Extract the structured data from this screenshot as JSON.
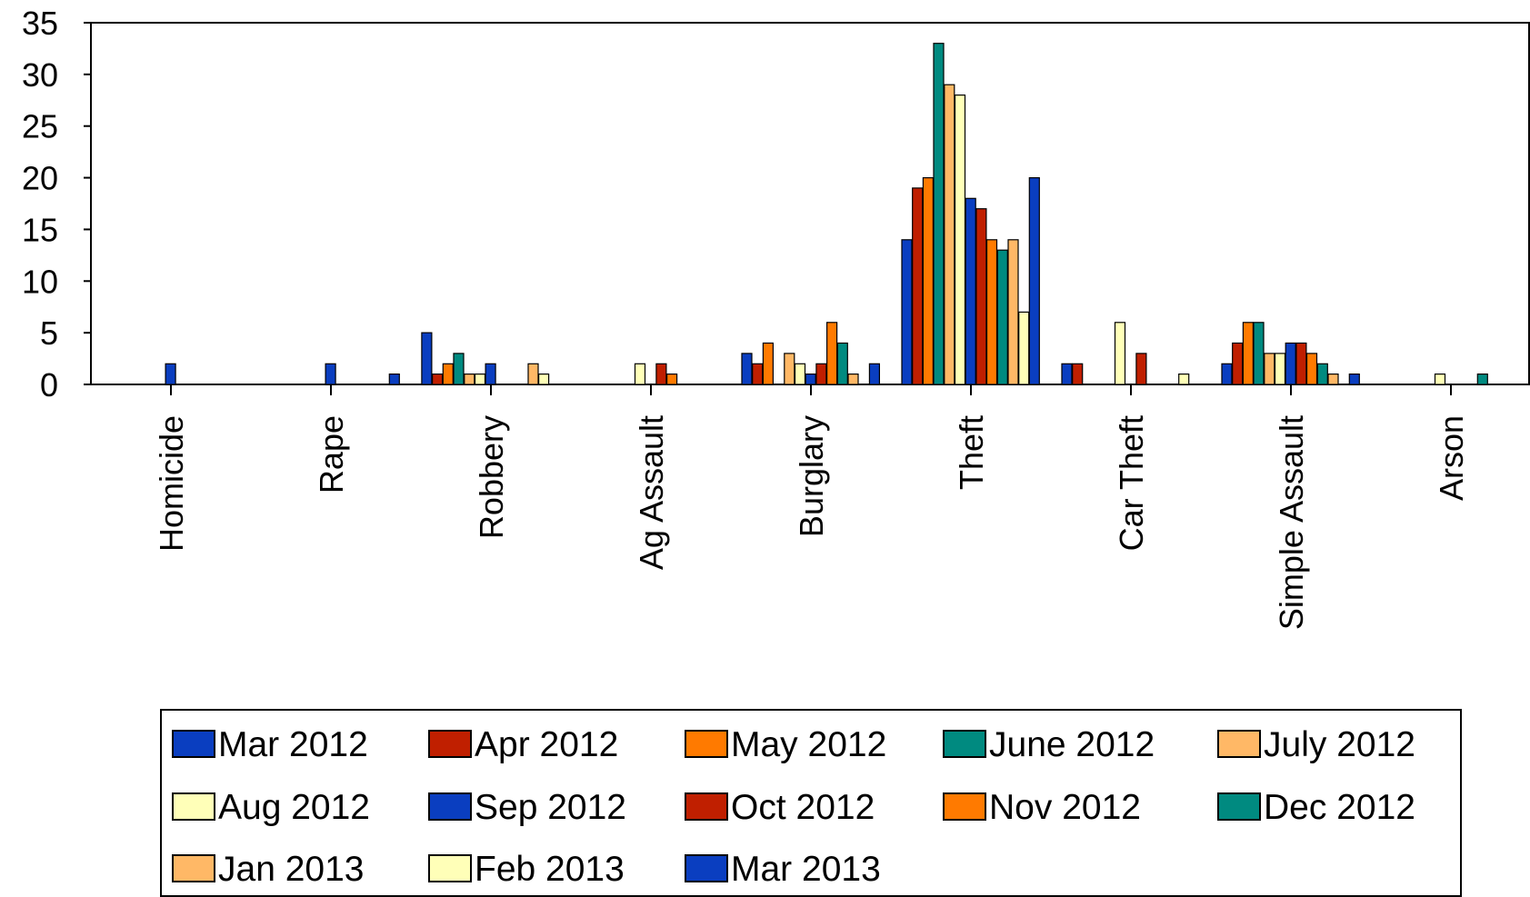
{
  "chart_data": {
    "type": "bar",
    "title": "",
    "xlabel": "",
    "ylabel": "",
    "ylim": [
      0,
      35
    ],
    "yticks": [
      0,
      5,
      10,
      15,
      20,
      25,
      30,
      35
    ],
    "grid": false,
    "legend_position": "bottom",
    "categories": [
      "Homicide",
      "Rape",
      "Robbery",
      "Ag Assault",
      "Burglary",
      "Theft",
      "Car Theft",
      "Simple Assault",
      "Arson"
    ],
    "series": [
      {
        "name": "Mar 2012",
        "color": "#0a3ec0",
        "values": [
          0,
          0,
          5,
          0,
          3,
          14,
          2,
          2,
          0
        ]
      },
      {
        "name": "Apr 2012",
        "color": "#c01f00",
        "values": [
          0,
          0,
          1,
          0,
          2,
          19,
          2,
          4,
          0
        ]
      },
      {
        "name": "May 2012",
        "color": "#ff7a00",
        "values": [
          0,
          0,
          2,
          0,
          4,
          20,
          0,
          6,
          0
        ]
      },
      {
        "name": "June 2012",
        "color": "#008a80",
        "values": [
          0,
          0,
          3,
          0,
          0,
          33,
          0,
          6,
          0
        ]
      },
      {
        "name": "July 2012",
        "color": "#ffb866",
        "values": [
          0,
          0,
          1,
          0,
          3,
          29,
          0,
          3,
          0
        ]
      },
      {
        "name": "Aug 2012",
        "color": "#ffffb8",
        "values": [
          0,
          0,
          1,
          2,
          2,
          28,
          6,
          3,
          1
        ]
      },
      {
        "name": "Sep 2012",
        "color": "#0a3ec0",
        "values": [
          2,
          2,
          2,
          0,
          1,
          18,
          0,
          4,
          0
        ]
      },
      {
        "name": "Oct 2012",
        "color": "#c01f00",
        "values": [
          0,
          0,
          0,
          2,
          2,
          17,
          3,
          4,
          0
        ]
      },
      {
        "name": "Nov 2012",
        "color": "#ff7a00",
        "values": [
          0,
          0,
          0,
          1,
          6,
          14,
          0,
          3,
          0
        ]
      },
      {
        "name": "Dec 2012",
        "color": "#008a80",
        "values": [
          0,
          0,
          0,
          0,
          4,
          13,
          0,
          2,
          1
        ]
      },
      {
        "name": "Jan 2013",
        "color": "#ffb866",
        "values": [
          0,
          0,
          2,
          0,
          1,
          14,
          0,
          1,
          0
        ]
      },
      {
        "name": "Feb 2013",
        "color": "#ffffb8",
        "values": [
          0,
          0,
          1,
          0,
          0,
          7,
          1,
          0,
          0
        ]
      },
      {
        "name": "Mar 2013",
        "color": "#0a3ec0",
        "values": [
          0,
          1,
          0,
          0,
          2,
          20,
          0,
          1,
          0
        ]
      }
    ]
  }
}
